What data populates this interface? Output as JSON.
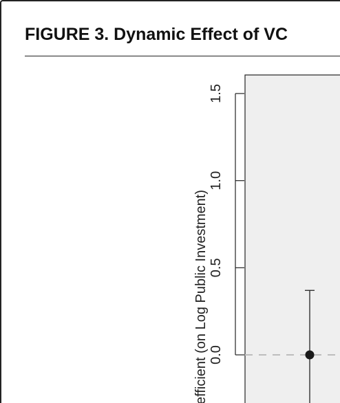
{
  "figure": {
    "title": "FIGURE 3.   Dynamic Effect of VC"
  },
  "chart_data": {
    "type": "scatter",
    "ylabel": "efficient (on Log Public Investment)",
    "ylim": [
      -0.28,
      1.6
    ],
    "yticks": [
      0.0,
      0.5,
      1.0,
      1.5
    ],
    "ytick_labels": [
      "0.0",
      "0.5",
      "1.0",
      "1.5"
    ],
    "reference_line": 0.0,
    "series": [
      {
        "points": [
          {
            "y": 0.0,
            "ci_low": -0.3,
            "ci_high": 0.37
          }
        ]
      }
    ],
    "panel_background": "#efefef",
    "marker_color": "#1a1a1a"
  }
}
